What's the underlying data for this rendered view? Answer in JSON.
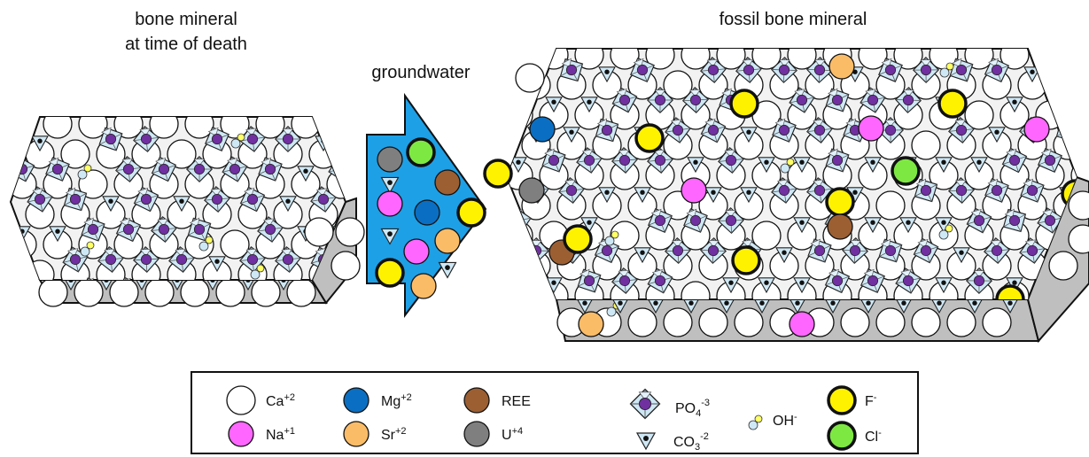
{
  "titles": {
    "initial_line1": "bone mineral",
    "initial_line2": "at time of death",
    "groundwater": "groundwater",
    "fossil": "fossil bone mineral"
  },
  "legend": {
    "ca": "Ca",
    "ca_sup": "+2",
    "na": "Na",
    "na_sup": "+1",
    "mg": "Mg",
    "mg_sup": "+2",
    "sr": "Sr",
    "sr_sup": "+2",
    "ree": "REE",
    "u": "U",
    "u_sup": "+4",
    "po4": "PO",
    "po4_sub": "4",
    "po4_sup": "-3",
    "co3": "CO",
    "co3_sub": "3",
    "co3_sup": "-2",
    "oh": "OH",
    "oh_sup": "-",
    "f": "F",
    "f_sup": "-",
    "cl": "Cl",
    "cl_sup": "-"
  },
  "colors": {
    "ca": "#ffffff",
    "na": "#ff66ff",
    "mg": "#0a6fc2",
    "sr": "#fbbc68",
    "ree": "#9c5f32",
    "u": "#7f7f7f",
    "f": "#fff200",
    "cl": "#7ee843",
    "phosphate": "#cfe8f5",
    "phosphorus": "#7030a0",
    "groundwater": "#1ea0e6",
    "crystal_face": "#f2f2f2",
    "crystal_side": "#bfbfbf"
  },
  "groundwater_ions": [
    "u",
    "cl",
    "carbonate",
    "ree",
    "na",
    "mg",
    "f",
    "carbonate",
    "na",
    "sr",
    "f",
    "carbonate",
    "sr"
  ]
}
